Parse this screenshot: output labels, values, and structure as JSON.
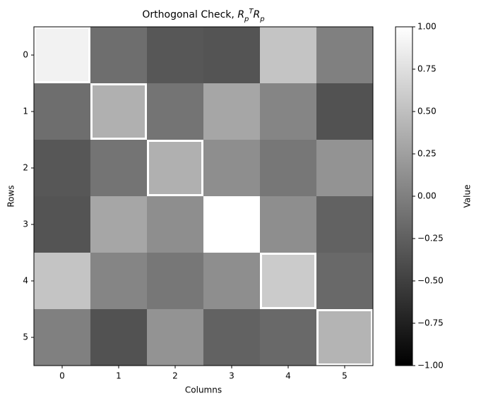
{
  "chart_data": {
    "type": "heatmap",
    "title": [
      "Orthogonal Check, ",
      "R",
      "p",
      "T",
      "R",
      "p"
    ],
    "x_label": "Columns",
    "y_label": "Rows",
    "colorbar_label": "Value",
    "xticks": [
      0,
      1,
      2,
      3,
      4,
      5
    ],
    "yticks": [
      0,
      1,
      2,
      3,
      4,
      5
    ],
    "values": [
      [
        0.9,
        -0.14,
        -0.32,
        -0.34,
        0.54,
        0.0
      ],
      [
        -0.14,
        0.38,
        -0.09,
        0.3,
        0.04,
        -0.36
      ],
      [
        -0.32,
        -0.09,
        0.38,
        0.11,
        -0.07,
        0.15
      ],
      [
        -0.34,
        0.3,
        0.11,
        1.0,
        0.11,
        -0.23
      ],
      [
        0.54,
        0.04,
        -0.07,
        0.11,
        0.59,
        -0.18
      ],
      [
        0.0,
        -0.36,
        0.15,
        -0.23,
        -0.18,
        0.41
      ]
    ],
    "zlim": [
      -1,
      1
    ],
    "colormap": "gray",
    "highlight_diagonal": true,
    "colorbar_ticks": [
      {
        "value": -1,
        "label": "−1.00"
      },
      {
        "value": -0.75,
        "label": "−0.75"
      },
      {
        "value": -0.5,
        "label": "−0.50"
      },
      {
        "value": -0.25,
        "label": "−0.25"
      },
      {
        "value": 0,
        "label": "0.00"
      },
      {
        "value": 0.25,
        "label": "0.25"
      },
      {
        "value": 0.5,
        "label": "0.50"
      },
      {
        "value": 0.75,
        "label": "0.75"
      },
      {
        "value": 1,
        "label": "1.00"
      }
    ]
  }
}
